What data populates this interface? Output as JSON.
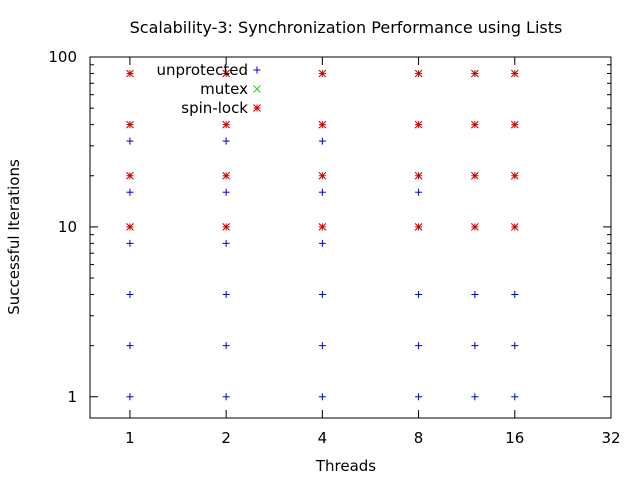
{
  "chart_data": {
    "type": "scatter",
    "title": "Scalability-3: Synchronization Performance using Lists",
    "xlabel": "Threads",
    "ylabel": "Successful Iterations",
    "x_scale": "log2",
    "y_scale": "log10",
    "xlim": [
      0.75,
      32
    ],
    "ylim": [
      0.75,
      100
    ],
    "x_ticks": [
      1,
      2,
      4,
      8,
      16,
      32
    ],
    "x_tick_labels": [
      "1",
      "2",
      "4",
      "8",
      "16",
      "32"
    ],
    "y_ticks": [
      1,
      10,
      100
    ],
    "y_tick_labels": [
      "1",
      "10",
      "100"
    ],
    "grid": false,
    "legend_position": "top-left",
    "series": [
      {
        "name": "unprotected",
        "marker": "+",
        "color": "#0000cc",
        "points": [
          [
            1,
            1
          ],
          [
            1,
            2
          ],
          [
            1,
            4
          ],
          [
            1,
            8
          ],
          [
            1,
            16
          ],
          [
            1,
            32
          ],
          [
            2,
            1
          ],
          [
            2,
            2
          ],
          [
            2,
            4
          ],
          [
            2,
            8
          ],
          [
            2,
            16
          ],
          [
            2,
            32
          ],
          [
            4,
            1
          ],
          [
            4,
            2
          ],
          [
            4,
            4
          ],
          [
            4,
            8
          ],
          [
            4,
            16
          ],
          [
            4,
            32
          ],
          [
            8,
            1
          ],
          [
            8,
            2
          ],
          [
            8,
            4
          ],
          [
            8,
            16
          ],
          [
            12,
            1
          ],
          [
            12,
            2
          ],
          [
            12,
            4
          ],
          [
            16,
            1
          ],
          [
            16,
            2
          ],
          [
            16,
            4
          ]
        ]
      },
      {
        "name": "mutex",
        "marker": "x",
        "color": "#33cc33",
        "points": []
      },
      {
        "name": "spin-lock",
        "marker": "*",
        "color": "#cc0000",
        "points": [
          [
            1,
            10
          ],
          [
            1,
            20
          ],
          [
            1,
            40
          ],
          [
            1,
            80
          ],
          [
            2,
            10
          ],
          [
            2,
            20
          ],
          [
            2,
            40
          ],
          [
            2,
            80
          ],
          [
            4,
            10
          ],
          [
            4,
            20
          ],
          [
            4,
            40
          ],
          [
            4,
            80
          ],
          [
            8,
            10
          ],
          [
            8,
            20
          ],
          [
            8,
            40
          ],
          [
            8,
            80
          ],
          [
            12,
            10
          ],
          [
            12,
            20
          ],
          [
            12,
            40
          ],
          [
            12,
            80
          ],
          [
            16,
            10
          ],
          [
            16,
            20
          ],
          [
            16,
            40
          ],
          [
            16,
            80
          ]
        ]
      }
    ]
  }
}
